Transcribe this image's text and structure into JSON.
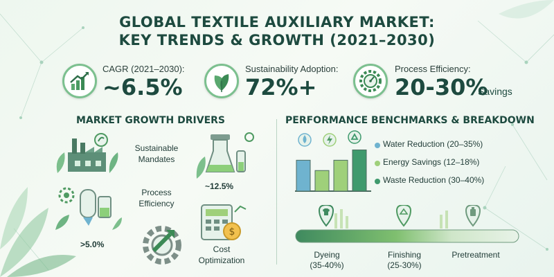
{
  "header": {
    "title_line1": "GLOBAL TEXTILE AUXILIARY MARKET:",
    "title_line2": "KEY TRENDS & GROWTH (2021–2030)"
  },
  "stats": [
    {
      "label": "CAGR (2021–2030):",
      "value": "~6.5%",
      "suffix": "",
      "icon": "growth-chart-icon"
    },
    {
      "label": "Sustainability Adoption:",
      "value": "72%+",
      "suffix": "",
      "icon": "leaf-icon"
    },
    {
      "label": "Process Efficiency:",
      "value": "20-30%",
      "suffix": "Savings",
      "icon": "gear-gauge-icon"
    }
  ],
  "drivers": {
    "title": "MARKET GROWTH DRIVERS",
    "items": [
      {
        "line1": "Sustainable",
        "line2": "Mandates",
        "icon": "factory-icon"
      },
      {
        "line1": "Process",
        "line2": "Efficiency",
        "icon": "process-equipment-icon"
      },
      {
        "line1": "Cost",
        "line2": "Optimization",
        "icon": "gear-arrow-icon"
      }
    ],
    "values": [
      "~12.5%",
      ">5.0%"
    ],
    "extra_icons": [
      "lab-equipment-icon",
      "calculator-coin-icon"
    ]
  },
  "benchmarks": {
    "title": "PERFORMANCE BENCHMARKS & BREAKDOWN",
    "legend": [
      {
        "label": "Water Reduction (20–35%)",
        "color": "#6fb3cf"
      },
      {
        "label": "Energy Savings (12–18%)",
        "color": "#9fd07a"
      },
      {
        "label": "Waste Reduction (30–40%)",
        "color": "#3f9a6d"
      }
    ],
    "bar_icons": [
      "water-drop-icon",
      "lightning-icon",
      "recycle-icon"
    ],
    "stages": [
      {
        "line1": "Dyeing",
        "line2": "(35-40%)",
        "icon": "tshirt-icon"
      },
      {
        "line1": "Finishing",
        "line2": "(25-30%)",
        "icon": "fabric-icon"
      },
      {
        "line1": "Pretreatment",
        "line2": "",
        "icon": "chemical-bottle-icon"
      }
    ]
  },
  "chart_data": {
    "type": "bar",
    "categories": [
      "",
      "",
      "",
      ""
    ],
    "values": [
      3,
      2,
      3,
      4
    ],
    "ylim": [
      0,
      5
    ],
    "title": "",
    "xlabel": "",
    "ylabel": ""
  },
  "colors": {
    "accent_dark": "#1d4a3f",
    "accent_green": "#4f9a62",
    "accent_light": "#9fd07a",
    "water_blue": "#6fb3cf"
  }
}
